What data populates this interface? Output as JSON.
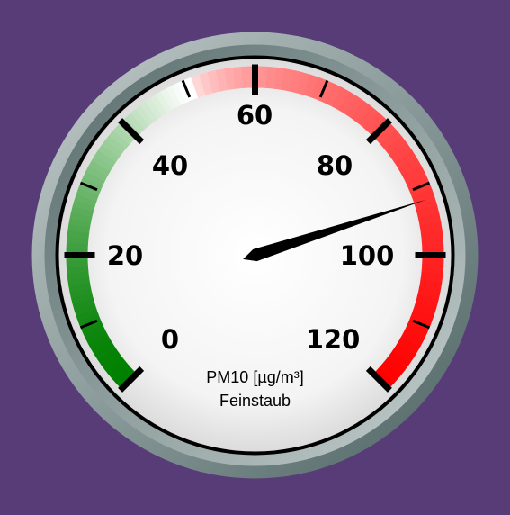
{
  "gauge": {
    "units": "PM10 [µg/m³]",
    "title": "Feinstaub",
    "min": 0,
    "max": 120,
    "value": 92,
    "major_ticks": [
      "0",
      "20",
      "40",
      "60",
      "80",
      "100",
      "120"
    ],
    "minor_ticks_per_major": 2,
    "highlights": [
      {
        "from": 0,
        "to": 50,
        "color_start": "#008000",
        "color_end": "#ffffff"
      },
      {
        "from": 50,
        "to": 120,
        "color_start": "#ffffff",
        "color_end": "#ff0000"
      }
    ],
    "colors": {
      "background": "#583c78",
      "bezel_outer": "#5f7171",
      "bezel_light": "#b9c2c2",
      "plate": "#ffffff",
      "needle": "#000000",
      "text": "#000000"
    }
  }
}
